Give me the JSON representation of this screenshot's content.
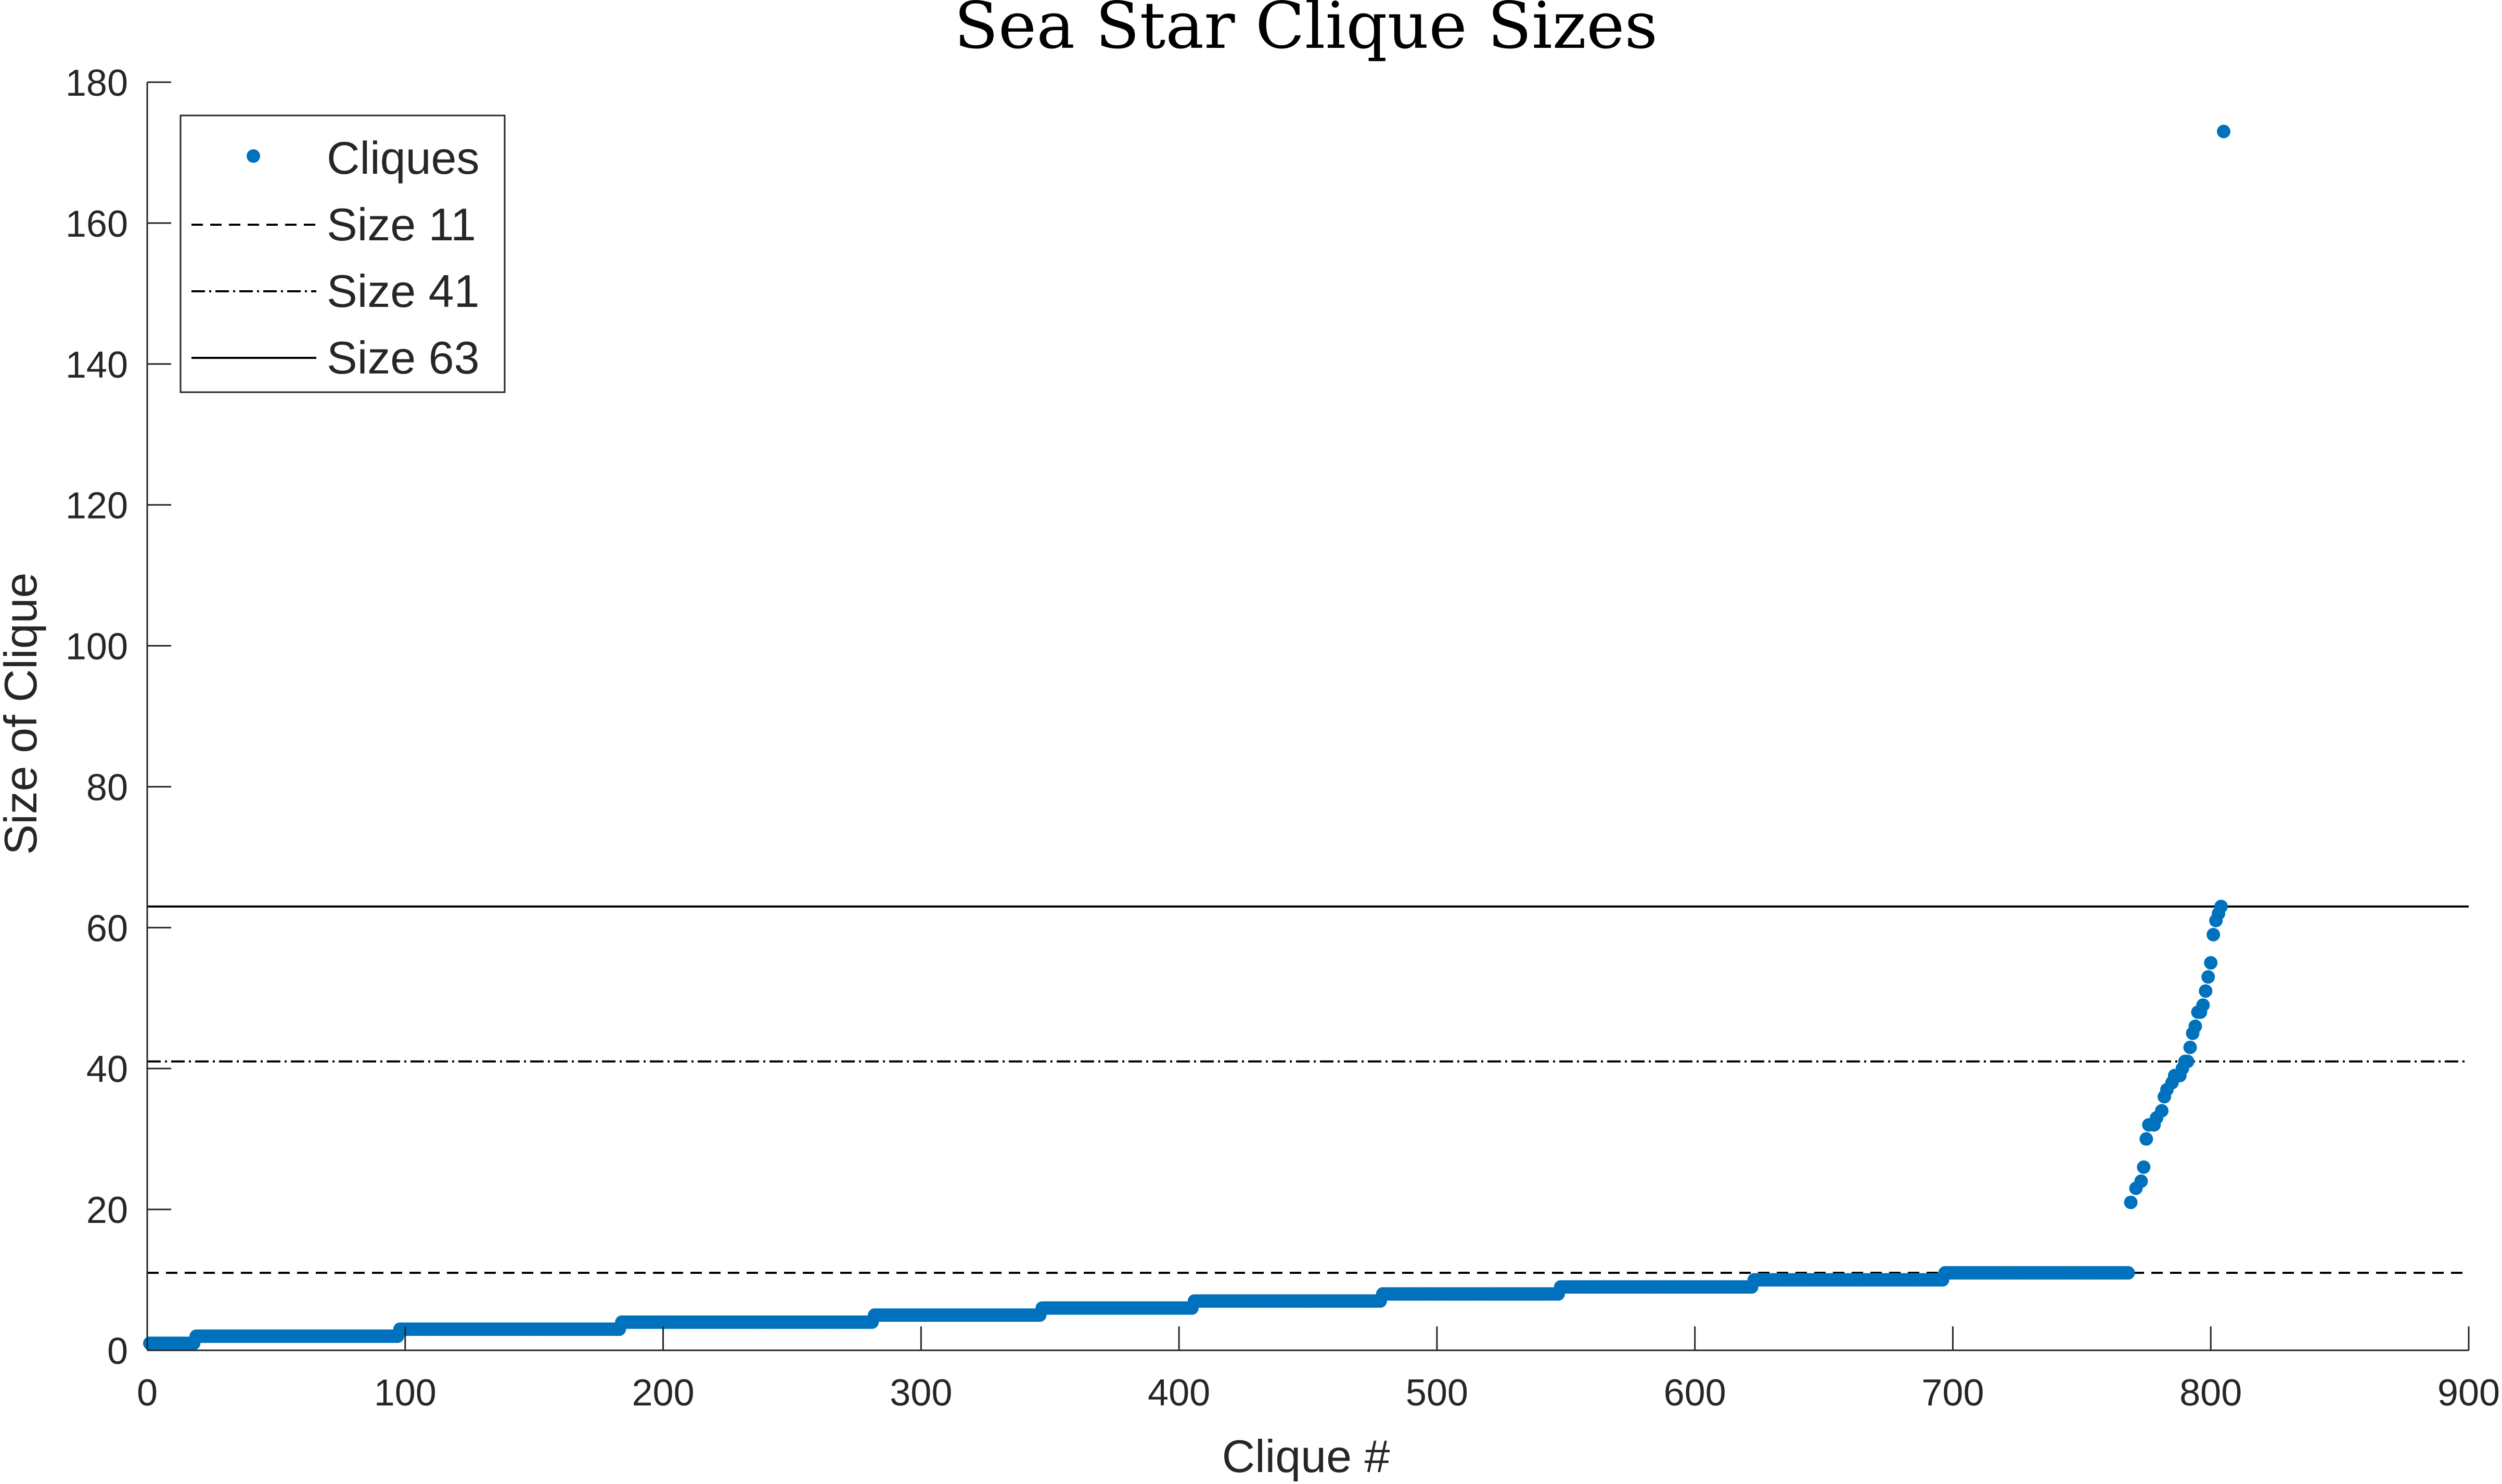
{
  "chart_data": {
    "type": "scatter",
    "title": "Sea Star Clique Sizes",
    "xlabel": "Clique  #",
    "ylabel": "Size of Clique",
    "xlim": [
      0,
      900
    ],
    "ylim": [
      0,
      180
    ],
    "xticks": [
      0,
      100,
      200,
      300,
      400,
      500,
      600,
      700,
      800,
      900
    ],
    "yticks": [
      0,
      20,
      40,
      60,
      80,
      100,
      120,
      140,
      160,
      180
    ],
    "grid": false,
    "legend_position": "top-left",
    "series_color": "#0072BD",
    "line_color": "#000000",
    "series": [
      {
        "name": "Cliques",
        "style": "dots",
        "runs": [
          {
            "x_start": 1,
            "x_end": 18,
            "y": 1
          },
          {
            "x_start": 19,
            "x_end": 97,
            "y": 2
          },
          {
            "x_start": 98,
            "x_end": 183,
            "y": 3
          },
          {
            "x_start": 184,
            "x_end": 281,
            "y": 4
          },
          {
            "x_start": 282,
            "x_end": 346,
            "y": 5
          },
          {
            "x_start": 347,
            "x_end": 405,
            "y": 6
          },
          {
            "x_start": 406,
            "x_end": 478,
            "y": 7
          },
          {
            "x_start": 479,
            "x_end": 547,
            "y": 8
          },
          {
            "x_start": 548,
            "x_end": 622,
            "y": 9
          },
          {
            "x_start": 623,
            "x_end": 696,
            "y": 10
          },
          {
            "x_start": 697,
            "x_end": 768,
            "y": 11
          }
        ],
        "points": [
          {
            "x": 769,
            "y": 21
          },
          {
            "x": 771,
            "y": 23
          },
          {
            "x": 773,
            "y": 24
          },
          {
            "x": 774,
            "y": 26
          },
          {
            "x": 775,
            "y": 30
          },
          {
            "x": 776,
            "y": 32
          },
          {
            "x": 778,
            "y": 32
          },
          {
            "x": 779,
            "y": 33
          },
          {
            "x": 781,
            "y": 34
          },
          {
            "x": 782,
            "y": 36
          },
          {
            "x": 783,
            "y": 37
          },
          {
            "x": 785,
            "y": 38
          },
          {
            "x": 786,
            "y": 39
          },
          {
            "x": 788,
            "y": 39
          },
          {
            "x": 789,
            "y": 40
          },
          {
            "x": 790,
            "y": 41
          },
          {
            "x": 791,
            "y": 41
          },
          {
            "x": 792,
            "y": 43
          },
          {
            "x": 793,
            "y": 45
          },
          {
            "x": 794,
            "y": 46
          },
          {
            "x": 795,
            "y": 48
          },
          {
            "x": 796,
            "y": 48
          },
          {
            "x": 797,
            "y": 49
          },
          {
            "x": 798,
            "y": 51
          },
          {
            "x": 799,
            "y": 53
          },
          {
            "x": 800,
            "y": 55
          },
          {
            "x": 801,
            "y": 59
          },
          {
            "x": 802,
            "y": 61
          },
          {
            "x": 803,
            "y": 62
          },
          {
            "x": 804,
            "y": 63
          },
          {
            "x": 805,
            "y": 173
          }
        ]
      },
      {
        "name": "Size 11",
        "style": "dashed",
        "y": 11
      },
      {
        "name": "Size 41",
        "style": "dash-dot",
        "y": 41
      },
      {
        "name": "Size 63",
        "style": "solid",
        "y": 63
      }
    ]
  }
}
